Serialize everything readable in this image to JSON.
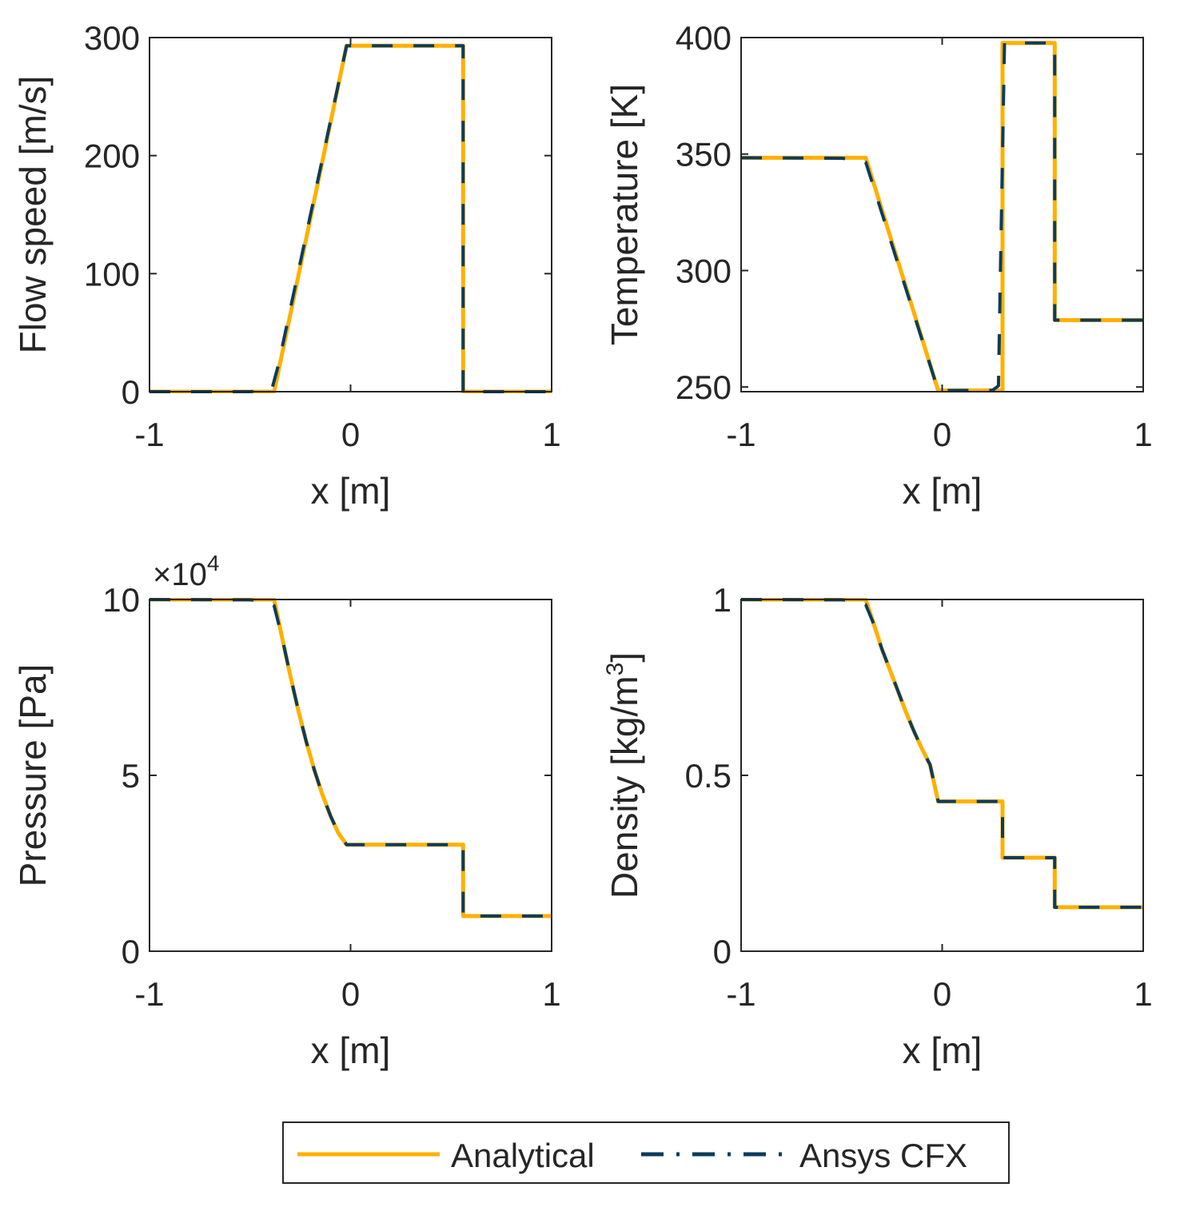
{
  "colors": {
    "analytical": "#FFB000",
    "cfx": "#0B3C5D",
    "axes": "#262626",
    "background": "#FFFFFF"
  },
  "legend": {
    "placement": "bottom-center",
    "entries": [
      {
        "label": "Analytical",
        "style": "solid",
        "color": "#FFB000"
      },
      {
        "label": "Ansys CFX",
        "style": "dash-dot",
        "color": "#0B3C5D"
      }
    ]
  },
  "chart_data": [
    {
      "type": "line",
      "xlabel": "x [m]",
      "ylabel": "Flow speed [m/s]",
      "xlim": [
        -1,
        1
      ],
      "ylim": [
        0,
        300
      ],
      "xticks": [
        -1,
        0,
        1
      ],
      "xtick_labels": [
        "-1",
        "0",
        "1"
      ],
      "yticks": [
        0,
        100,
        200,
        300
      ],
      "ytick_labels": [
        "0",
        "100",
        "200",
        "300"
      ],
      "grid": false,
      "exponent_label": "",
      "series": [
        {
          "name": "Analytical",
          "x": [
            -1,
            -0.38,
            -0.02,
            0.56,
            0.56,
            1
          ],
          "y": [
            0,
            0,
            293,
            293,
            0,
            0
          ]
        },
        {
          "name": "Ansys CFX",
          "x": [
            -1,
            -0.5,
            -0.42,
            -0.39,
            -0.36,
            -0.02,
            0.56,
            0.56,
            1
          ],
          "y": [
            0,
            0,
            1,
            3,
            22,
            293,
            293,
            0,
            0
          ]
        }
      ]
    },
    {
      "type": "line",
      "xlabel": "x [m]",
      "ylabel": "Temperature [K]",
      "xlim": [
        -1,
        1
      ],
      "ylim": [
        248,
        400
      ],
      "xticks": [
        -1,
        0,
        1
      ],
      "xtick_labels": [
        "-1",
        "0",
        "1"
      ],
      "yticks": [
        250,
        300,
        350,
        400
      ],
      "ytick_labels": [
        "250",
        "300",
        "350",
        "400"
      ],
      "grid": false,
      "exponent_label": "",
      "series": [
        {
          "name": "Analytical",
          "x": [
            -1,
            -0.38,
            -0.02,
            0.3,
            0.3,
            0.56,
            0.56,
            1
          ],
          "y": [
            348.4,
            348.4,
            248.5,
            248.5,
            397.7,
            397.7,
            278.7,
            278.7
          ]
        },
        {
          "name": "Ansys CFX",
          "x": [
            -1,
            -0.5,
            -0.42,
            -0.38,
            -0.02,
            0.25,
            0.28,
            0.29,
            0.31,
            0.56,
            0.56,
            1
          ],
          "y": [
            348.4,
            348.2,
            347.6,
            346.5,
            248.5,
            248.6,
            250.5,
            300,
            397.7,
            397.7,
            278.7,
            278.7
          ]
        }
      ]
    },
    {
      "type": "line",
      "xlabel": "x [m]",
      "ylabel": "Pressure [Pa]",
      "xlim": [
        -1,
        1
      ],
      "ylim": [
        0,
        10
      ],
      "xticks": [
        -1,
        0,
        1
      ],
      "xtick_labels": [
        "-1",
        "0",
        "1"
      ],
      "yticks": [
        0,
        5,
        10
      ],
      "ytick_labels": [
        "0",
        "5",
        "10"
      ],
      "grid": false,
      "exponent_label": "×10",
      "exponent_power": "4",
      "series": [
        {
          "name": "Analytical",
          "x": [
            -1,
            -0.38,
            -0.34,
            -0.3,
            -0.26,
            -0.22,
            -0.18,
            -0.14,
            -0.1,
            -0.06,
            -0.02,
            0.56,
            0.56,
            1
          ],
          "y": [
            10,
            10,
            8.9,
            7.85,
            6.85,
            5.95,
            5.15,
            4.45,
            3.85,
            3.35,
            3.03,
            3.03,
            1.0,
            1.0
          ]
        },
        {
          "name": "Ansys CFX",
          "x": [
            -1,
            -0.5,
            -0.42,
            -0.38,
            -0.34,
            -0.3,
            -0.26,
            -0.22,
            -0.18,
            -0.14,
            -0.1,
            -0.06,
            -0.02,
            0.56,
            0.56,
            1
          ],
          "y": [
            10,
            9.99,
            9.95,
            9.82,
            8.9,
            7.85,
            6.85,
            5.95,
            5.15,
            4.45,
            3.85,
            3.35,
            3.03,
            3.03,
            1.0,
            1.0
          ]
        }
      ]
    },
    {
      "type": "line",
      "xlabel": "x [m]",
      "ylabel": "Density [kg/m",
      "ylabel_sup": "3",
      "ylabel_end": "]",
      "xlim": [
        -1,
        1
      ],
      "ylim": [
        0,
        1
      ],
      "xticks": [
        -1,
        0,
        1
      ],
      "xtick_labels": [
        "-1",
        "0",
        "1"
      ],
      "yticks": [
        0,
        0.5,
        1
      ],
      "ytick_labels": [
        "0",
        "0.5",
        "1"
      ],
      "grid": false,
      "exponent_label": "",
      "series": [
        {
          "name": "Analytical",
          "x": [
            -1,
            -0.38,
            -0.34,
            -0.3,
            -0.26,
            -0.22,
            -0.18,
            -0.14,
            -0.1,
            -0.06,
            -0.02,
            0.3,
            0.3,
            0.56,
            0.56,
            1
          ],
          "y": [
            1,
            1,
            0.93,
            0.86,
            0.8,
            0.74,
            0.68,
            0.625,
            0.575,
            0.53,
            0.426,
            0.426,
            0.266,
            0.266,
            0.125,
            0.125
          ]
        },
        {
          "name": "Ansys CFX",
          "x": [
            -1,
            -0.5,
            -0.42,
            -0.38,
            -0.34,
            -0.3,
            -0.26,
            -0.22,
            -0.18,
            -0.14,
            -0.1,
            -0.06,
            -0.02,
            0.3,
            0.3,
            0.56,
            0.56,
            1
          ],
          "y": [
            1,
            0.999,
            0.995,
            0.985,
            0.93,
            0.86,
            0.8,
            0.74,
            0.68,
            0.625,
            0.575,
            0.53,
            0.426,
            0.426,
            0.266,
            0.266,
            0.125,
            0.125
          ]
        }
      ]
    }
  ]
}
